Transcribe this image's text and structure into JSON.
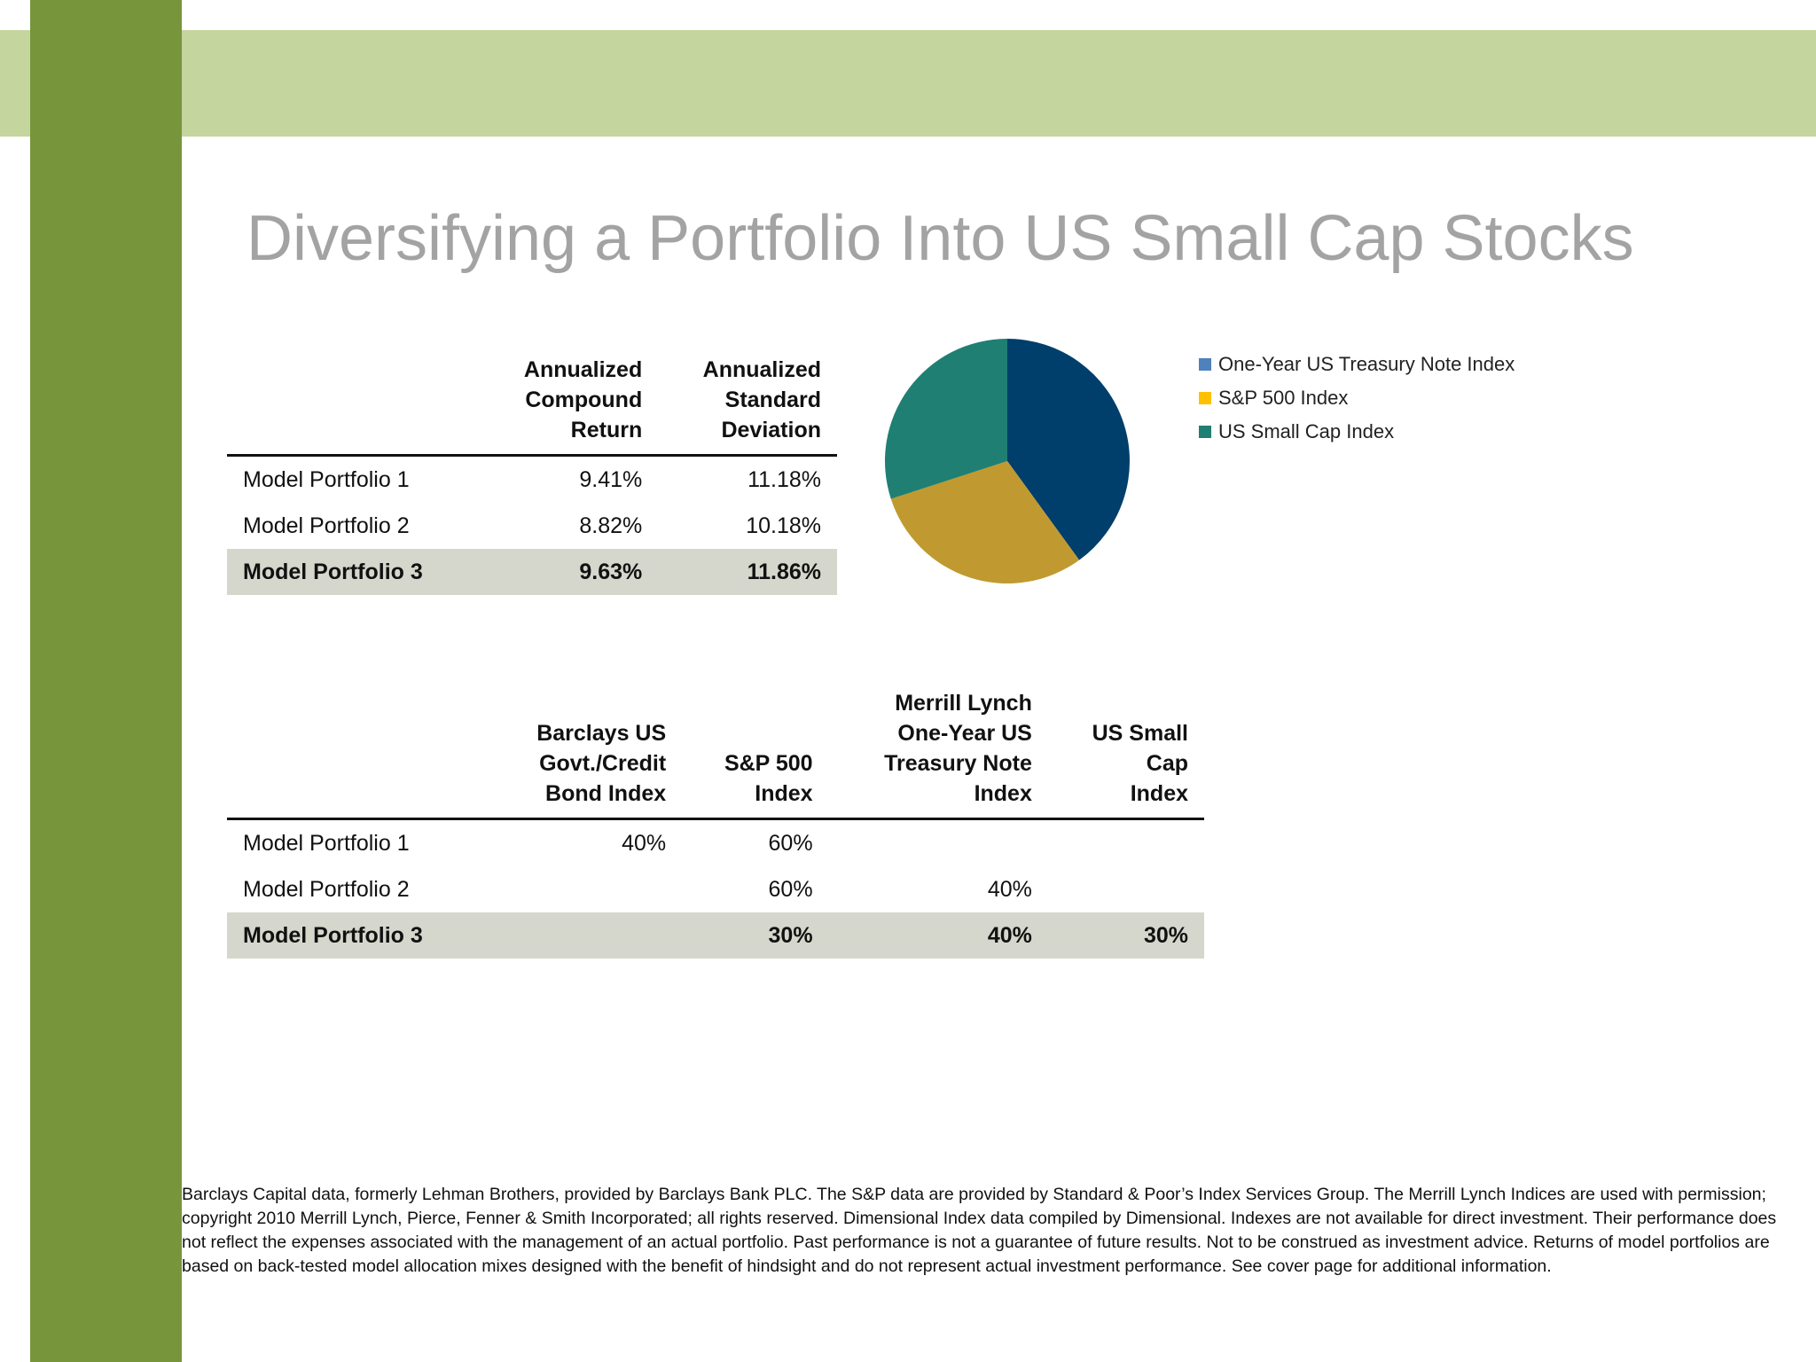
{
  "slide": {
    "title": "Diversifying a Portfolio Into US Small Cap Stocks",
    "footnote": "Barclays Capital data, formerly Lehman Brothers, provided by Barclays Bank PLC. The S&P data are provided by Standard & Poor’s Index Services Group. The Merrill Lynch Indices are used with permission; copyright 2010 Merrill Lynch, Pierce, Fenner & Smith Incorporated; all rights reserved. Dimensional Index data compiled by Dimensional. Indexes are not available for direct investment. Their performance does not reflect the expenses associated with the management of an actual portfolio. Past performance is not a guarantee of future results. Not to be construed as investment advice. Returns of model portfolios are based on back-tested model allocation mixes designed with the benefit of hindsight and do not represent actual investment performance. See cover page for additional information."
  },
  "colors": {
    "top_band": "#c5d59e",
    "left_bar": "#77953b",
    "title": "#a3a3a3",
    "highlight_row": "#d6d7cc"
  },
  "returns_table": {
    "headers": [
      {
        "lines": [
          "",
          "",
          ""
        ]
      },
      {
        "lines": [
          "Annualized",
          "Compound",
          "Return"
        ]
      },
      {
        "lines": [
          "Annualized",
          "Standard",
          "Deviation"
        ]
      }
    ],
    "rows": [
      {
        "cells": [
          "Model Portfolio 1",
          "9.41%",
          "11.18%"
        ]
      },
      {
        "cells": [
          "Model Portfolio 2",
          "8.82%",
          "10.18%"
        ]
      },
      {
        "cells": [
          "Model Portfolio 3",
          "9.63%",
          "11.86%"
        ],
        "highlight": true
      }
    ]
  },
  "allocation_table": {
    "headers": [
      {
        "lines": [
          "",
          "",
          "",
          ""
        ]
      },
      {
        "lines": [
          "",
          "Barclays US",
          "Govt./Credit",
          "Bond Index"
        ]
      },
      {
        "lines": [
          "",
          "",
          "S&P 500",
          "Index"
        ]
      },
      {
        "lines": [
          "Merrill Lynch",
          "One-Year US",
          "Treasury Note",
          "Index"
        ]
      },
      {
        "lines": [
          "",
          "US Small",
          "Cap",
          "Index"
        ]
      }
    ],
    "rows": [
      {
        "cells": [
          "Model Portfolio 1",
          "40%",
          "60%",
          "",
          ""
        ]
      },
      {
        "cells": [
          "Model Portfolio 2",
          "",
          "60%",
          "40%",
          ""
        ]
      },
      {
        "cells": [
          "Model Portfolio 3",
          "",
          "30%",
          "40%",
          "30%"
        ],
        "highlight": true
      }
    ]
  },
  "chart_data": {
    "type": "pie",
    "categories": [
      "One-Year US Treasury Note Index",
      "S&P 500 Index",
      "US Small Cap Index"
    ],
    "values": [
      40,
      30,
      30
    ],
    "slice_colors": [
      "#003f6b",
      "#c09a30",
      "#1f7f72"
    ],
    "legend_colors": [
      "#4f81bd",
      "#ffc000",
      "#1f7f72"
    ],
    "legend": "right",
    "title": ""
  }
}
